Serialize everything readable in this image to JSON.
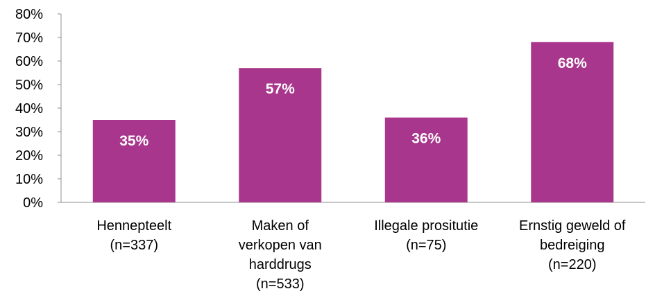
{
  "chart_data": {
    "type": "bar",
    "categories": [
      [
        "Hennepteelt",
        "(n=337)"
      ],
      [
        "Maken of",
        "verkopen van",
        "harddrugs",
        "(n=533)"
      ],
      [
        "Illegale prositutie",
        "(n=75)"
      ],
      [
        "Ernstig geweld of",
        "bedreiging",
        "(n=220)"
      ]
    ],
    "values": [
      35,
      57,
      36,
      68
    ],
    "data_labels": [
      "35%",
      "57%",
      "36%",
      "68%"
    ],
    "ylim": [
      0,
      80
    ],
    "yticks": [
      "0%",
      "10%",
      "20%",
      "30%",
      "40%",
      "50%",
      "60%",
      "70%",
      "80%"
    ],
    "bar_color": "#a8368c",
    "grid": false,
    "legend": "none"
  }
}
